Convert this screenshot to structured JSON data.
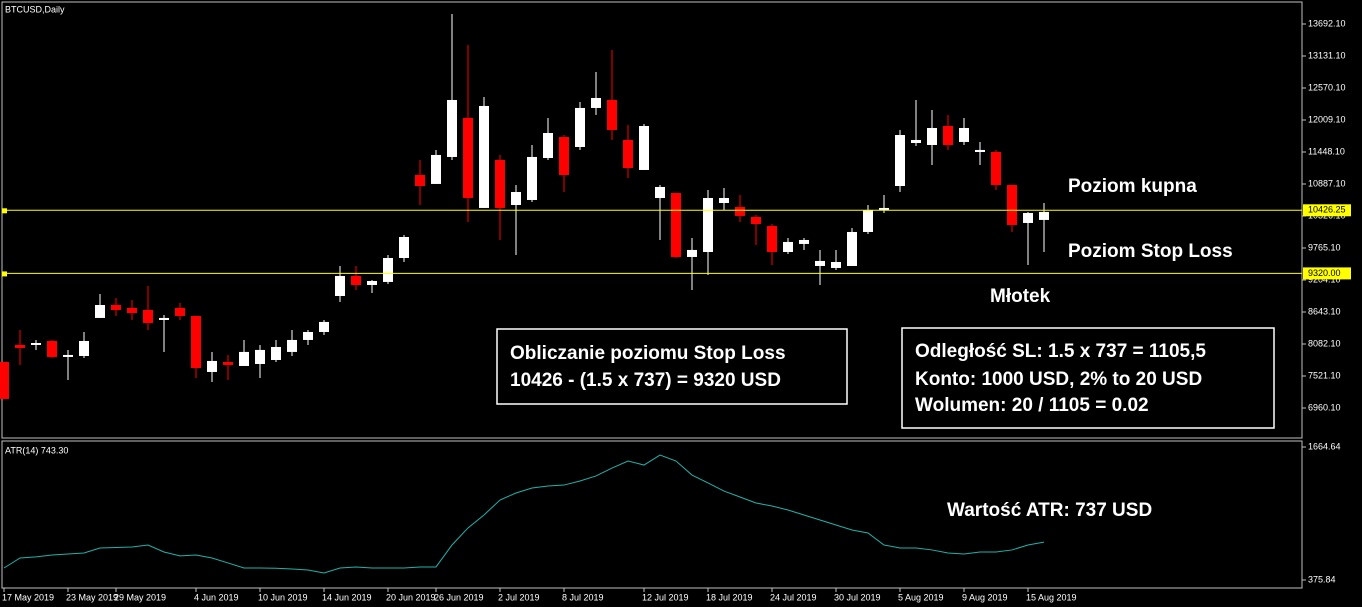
{
  "chart_data": [
    {
      "type": "candlestick",
      "title": "BTCUSD,Daily",
      "open": [
        7767,
        8065,
        8065,
        8135,
        7855,
        7872,
        8539,
        8766,
        8714,
        8679,
        8503,
        8714,
        8574,
        7592,
        7767,
        7697,
        7732,
        7802,
        7943,
        8153,
        8293,
        8924,
        9275,
        9117,
        9170,
        9590,
        11045,
        10888,
        11361,
        12045,
        10467,
        11308,
        10519,
        10607,
        11343,
        11711,
        11536,
        12220,
        12360,
        11659,
        11133,
        10642,
        10730,
        9608,
        9695,
        10554,
        10484,
        10309,
        10151,
        9695,
        9836,
        9450,
        9415,
        9450,
        10046,
        10432,
        10852,
        11606,
        11571,
        11904,
        11624,
        11448,
        11448,
        10870,
        10204,
        10257
      ],
      "high": [
        7767,
        8328,
        8153,
        8153,
        7978,
        8293,
        8959,
        8889,
        8854,
        9099,
        8591,
        8801,
        8574,
        7943,
        7890,
        8153,
        8065,
        8153,
        8328,
        8328,
        8503,
        9450,
        9450,
        9204,
        9643,
        9993,
        11308,
        11484,
        13868,
        13324,
        12413,
        11396,
        10870,
        11571,
        12045,
        11746,
        12325,
        12851,
        13236,
        11922,
        11939,
        10870,
        10730,
        9941,
        10782,
        10817,
        10695,
        10344,
        10186,
        9941,
        9941,
        9731,
        9731,
        10116,
        10519,
        10695,
        11834,
        12360,
        12185,
        12097,
        12045,
        11624,
        11484,
        10870,
        10397,
        10554
      ],
      "low": [
        7119,
        7715,
        7978,
        7837,
        7452,
        7837,
        8539,
        8574,
        8503,
        8328,
        7943,
        8503,
        7487,
        7417,
        7452,
        7697,
        7487,
        7767,
        7872,
        8065,
        8240,
        8819,
        9029,
        8977,
        9135,
        9520,
        10519,
        10888,
        11308,
        10221,
        10467,
        9906,
        9643,
        10572,
        11308,
        10747,
        11484,
        12097,
        11659,
        10993,
        11133,
        9906,
        9590,
        9029,
        9292,
        10432,
        10221,
        9818,
        9468,
        9660,
        9731,
        9117,
        9380,
        9450,
        10011,
        10379,
        10747,
        11554,
        11221,
        11484,
        11571,
        11221,
        10782,
        10046,
        9468,
        9695
      ],
      "close": [
        7119,
        8013,
        8100,
        7855,
        7890,
        8135,
        8766,
        8679,
        8626,
        8451,
        8539,
        8574,
        7662,
        7785,
        7715,
        7943,
        7978,
        8030,
        8153,
        8293,
        8469,
        9275,
        9117,
        9187,
        9590,
        9958,
        10852,
        11396,
        12360,
        10642,
        12255,
        10467,
        10747,
        11361,
        11781,
        11045,
        12220,
        12395,
        11834,
        11168,
        11904,
        10835,
        9608,
        9731,
        10642,
        10642,
        10327,
        10186,
        9695,
        9871,
        9906,
        9538,
        9520,
        10046,
        10432,
        10467,
        11746,
        11659,
        11869,
        11571,
        11869,
        11484,
        10870,
        10169,
        10379,
        10397
      ],
      "up_color": "#ffffff",
      "down_color": "#ff0000",
      "ylim": [
        6452,
        14025
      ],
      "yticks": [
        {
          "value": 13692.1,
          "label": "13692.10"
        },
        {
          "value": 13131.1,
          "label": "13131.10"
        },
        {
          "value": 12570.1,
          "label": "12570.10"
        },
        {
          "value": 12009.1,
          "label": "12009.10"
        },
        {
          "value": 11448.1,
          "label": "11448.10"
        },
        {
          "value": 10887.1,
          "label": "10887.10"
        },
        {
          "value": 10326.1,
          "label": "10326.10"
        },
        {
          "value": 9765.1,
          "label": "9765.10"
        },
        {
          "value": 9204.1,
          "label": "9204.10"
        },
        {
          "value": 8643.1,
          "label": "8643.10"
        },
        {
          "value": 8082.1,
          "label": "8082.10"
        },
        {
          "value": 7521.1,
          "label": "7521.10"
        },
        {
          "value": 6960.1,
          "label": "6960.10"
        }
      ],
      "hlines": [
        {
          "value": 10426.25,
          "label": "10426.25"
        },
        {
          "value": 9320,
          "label": "9320.00"
        }
      ],
      "hline_color": "#ffff00",
      "annotations": [
        "Poziom kupna",
        "Poziom Stop Loss",
        "Młotek"
      ],
      "boxes": [
        [
          "Obliczanie poziomu Stop Loss",
          "10426 - (1.5 x 737) = 9320 USD"
        ],
        [
          "Odległość SL: 1.5 x 737 = 1105,5",
          "Konto: 1000 USD, 2% to 20 USD",
          "Wolumen: 20 / 1105 = 0.02"
        ]
      ]
    },
    {
      "type": "line",
      "title": "ATR(14) 743.30",
      "color": "#20b2aa",
      "categories": [
        "17 May 2019",
        null,
        null,
        null,
        "23 May 2019",
        null,
        null,
        "29 May 2019",
        null,
        null,
        null,
        null,
        "4 Jun 2019",
        null,
        null,
        null,
        "10 Jun 2019",
        null,
        null,
        null,
        "14 Jun 2019",
        null,
        null,
        null,
        "20 Jun 2019",
        null,
        null,
        "26 Jun 2019",
        null,
        null,
        null,
        "2 Jul 2019",
        null,
        null,
        null,
        "8 Jul 2019",
        null,
        null,
        null,
        null,
        "12 Jul 2019",
        null,
        null,
        null,
        "18 Jul 2019",
        null,
        null,
        null,
        "24 Jul 2019",
        null,
        null,
        null,
        "30 Jul 2019",
        null,
        null,
        null,
        "5 Aug 2019",
        null,
        null,
        null,
        "9 Aug 2019",
        null,
        null,
        null,
        "15 Aug 2019",
        null
      ],
      "values": [
        492,
        589,
        600,
        618,
        628,
        637,
        686,
        690,
        696,
        715,
        647,
        609,
        618,
        589,
        541,
        492,
        492,
        490,
        482,
        473,
        444,
        492,
        502,
        492,
        492,
        492,
        502,
        502,
        715,
        880,
        1006,
        1151,
        1219,
        1267,
        1287,
        1296,
        1335,
        1384,
        1461,
        1529,
        1490,
        1587,
        1529,
        1393,
        1316,
        1238,
        1180,
        1122,
        1093,
        1054,
        1006,
        957,
        909,
        860,
        831,
        715,
        686,
        686,
        667,
        637,
        628,
        647,
        647,
        667,
        715,
        743
      ],
      "ylim": [
        298,
        1723
      ],
      "yticks": [
        1664.64,
        375.84
      ],
      "annotations": [
        "Wartość ATR: 737 USD"
      ]
    }
  ]
}
